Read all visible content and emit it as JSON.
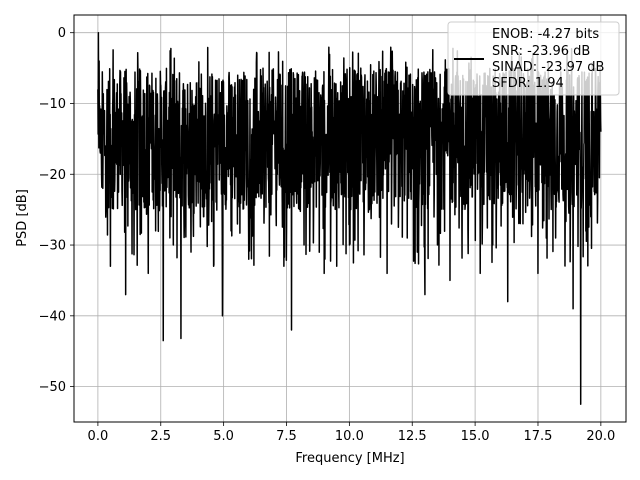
{
  "chart_data": {
    "type": "line",
    "title": "",
    "xlabel": "Frequency [MHz]",
    "ylabel": "PSD [dB]",
    "xlim": [
      -0.95,
      21.0
    ],
    "ylim": [
      -55,
      2.5
    ],
    "xticks": [
      0.0,
      2.5,
      5.0,
      7.5,
      10.0,
      12.5,
      15.0,
      17.5,
      20.0
    ],
    "xtick_labels": [
      "0.0",
      "2.5",
      "5.0",
      "7.5",
      "10.0",
      "12.5",
      "15.0",
      "17.5",
      "20.0"
    ],
    "yticks": [
      0,
      -10,
      -20,
      -30,
      -40,
      -50
    ],
    "ytick_labels": [
      "0",
      "−10",
      "−20",
      "−30",
      "−40",
      "−50"
    ],
    "grid": true,
    "legend_position": "top-right",
    "series": [
      {
        "name": "",
        "color": "#000000",
        "description_points": {
          "x": [
            0.0,
            0.02,
            0.05,
            0.08,
            0.1,
            0.15,
            0.2,
            0.3,
            0.5,
            0.8,
            1.1,
            1.5,
            2.0,
            2.3,
            2.6,
            3.0,
            3.3,
            3.7,
            4.2,
            4.6,
            4.95,
            5.3,
            6.0,
            6.8,
            7.4,
            7.7,
            8.2,
            9.0,
            9.5,
            10.0,
            10.8,
            11.5,
            12.3,
            12.7,
            13.0,
            13.5,
            14.0,
            14.5,
            15.2,
            15.7,
            16.3,
            16.9,
            17.5,
            18.2,
            18.9,
            19.2,
            19.6,
            20.0
          ],
          "y": [
            -8,
            0,
            -4,
            -13,
            -17,
            -20,
            -22,
            -16,
            -33,
            -20,
            -37,
            -25,
            -34,
            -28,
            -43.5,
            -30,
            -43.2,
            -31,
            -26,
            -33,
            -40,
            -28,
            -32,
            -24,
            -33,
            -42,
            -30,
            -34,
            -33,
            -30,
            -25,
            -34,
            -29,
            -31,
            -37,
            -30,
            -35,
            -25,
            -34,
            -30,
            -38,
            -27,
            -34,
            -29,
            -39,
            -52.5,
            -26,
            -14
          ]
        },
        "noise_floor_mean_db": -15,
        "noise_band_db": [
          -25,
          -5
        ]
      }
    ],
    "legend": {
      "lines": [
        "ENOB: -4.27 bits",
        "SNR: -23.96 dB",
        "SINAD: -23.97 dB",
        "SFDR: 1.94"
      ]
    }
  }
}
